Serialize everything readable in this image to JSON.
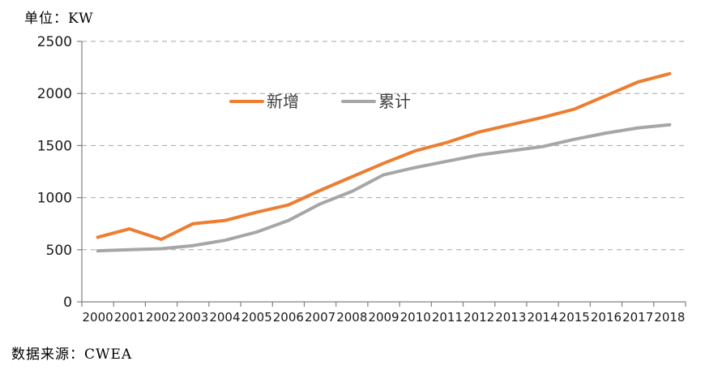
{
  "header": {
    "unit_label": "单位：KW"
  },
  "footer": {
    "source_label": "数据来源：CWEA"
  },
  "chart_data": {
    "type": "line",
    "title": "",
    "unit_label": "单位：KW",
    "source_label": "数据来源：CWEA",
    "categories": [
      "2000",
      "2001",
      "2002",
      "2003",
      "2004",
      "2005",
      "2006",
      "2007",
      "2008",
      "2009",
      "2010",
      "2011",
      "2012",
      "2013",
      "2014",
      "2015",
      "2016",
      "2017",
      "2018"
    ],
    "series": [
      {
        "name": "新增",
        "color": "#ED7D31",
        "values": [
          620,
          700,
          600,
          750,
          780,
          860,
          930,
          1070,
          1200,
          1330,
          1450,
          1530,
          1630,
          1700,
          1770,
          1850,
          1980,
          2110,
          2190
        ]
      },
      {
        "name": "累计",
        "color": "#A6A6A6",
        "values": [
          490,
          500,
          510,
          540,
          590,
          670,
          780,
          940,
          1060,
          1220,
          1290,
          1350,
          1410,
          1450,
          1490,
          1560,
          1620,
          1670,
          1700
        ]
      }
    ],
    "xlabel": "",
    "ylabel": "",
    "ylim": [
      0,
      2500
    ],
    "yticks": [
      0,
      500,
      1000,
      1500,
      2000,
      2500
    ],
    "grid": "horizontal-dashed",
    "legend_position": "top-center",
    "colors": {
      "axis": "#808080",
      "gridline": "#A6A6A6",
      "tick_text": "#1a1a1a"
    }
  }
}
